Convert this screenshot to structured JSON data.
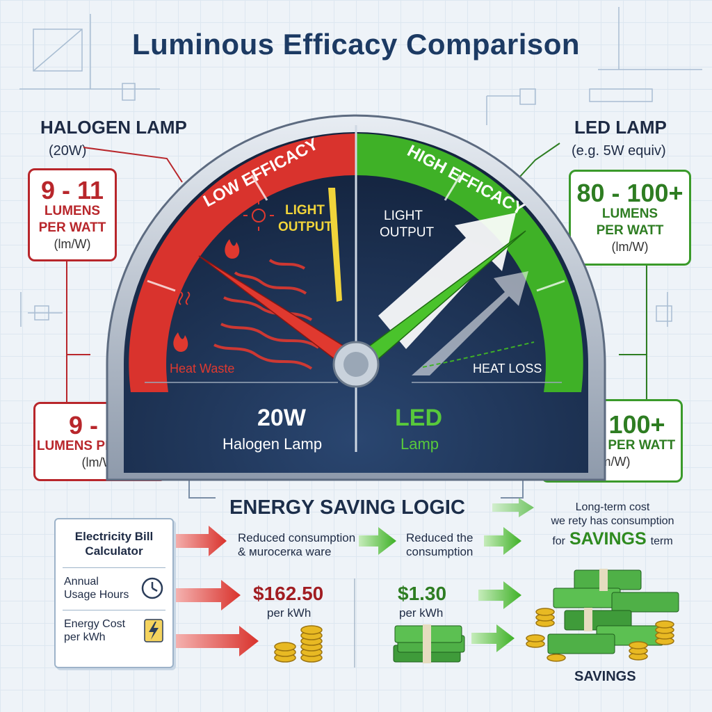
{
  "title": "Luminous Efficacy Comparison",
  "halogen": {
    "heading": "HALOGEN LAMP",
    "sub": "(20W)",
    "box_top": {
      "range": "9 - 11",
      "unit_line1": "LUMENS",
      "unit_line2": "PER WATT",
      "abbr": "(lm/W)"
    },
    "box_bottom": {
      "range": "9 - 11",
      "unit": "LUMENS PER WATT",
      "abbr": "(lm/W)"
    }
  },
  "led": {
    "heading": "LED LAMP",
    "sub": "(e.g. 5W equiv)",
    "box_top": {
      "range": "80 - 100+",
      "unit_line1": "LUMENS",
      "unit_line2": "PER WATT",
      "abbr": "(lm/W)"
    },
    "box_bottom": {
      "range": "80 - 100+",
      "unit": "LUMENS PER WATT",
      "abbr": "(lm/W)"
    }
  },
  "gauge": {
    "low_label": "LOW EFFICACY",
    "high_label": "HIGH EFFICACY",
    "left_light_line1": "LIGHT",
    "left_light_line2": "OUTPUT",
    "right_light_line1": "LIGHT",
    "right_light_line2": "OUTPUT",
    "heat_waste": "Heat Waste",
    "heat_loss": "HEAT LOSS",
    "left_caption_big": "20W",
    "left_caption_small": "Halogen Lamp",
    "right_caption_big": "LED",
    "right_caption_small": "Lamp",
    "colors": {
      "low": "#d9332d",
      "high": "#3fb127",
      "face": "#1b2d4f"
    }
  },
  "energy": {
    "heading": "ENERGY SAVING LOGIC",
    "step1_line1": "Reduced consumption",
    "step1_line2": "& мurocerкa ware",
    "step2_line1": "Reduced the",
    "step2_line2": "consumption",
    "step3_line1": "Long-term cost",
    "step3_line2": "we rety has consumption",
    "step3_for": "for",
    "step3_savings": "SAVINGS",
    "step3_term": "term"
  },
  "calculator": {
    "title_line1": "Electricity Bill",
    "title_line2": "Calculator",
    "row1_line1": "Annual",
    "row1_line2": "Usage Hours",
    "row2_line1": "Energy Cost",
    "row2_line2": "per kWh",
    "icons": [
      "clock-icon",
      "lightning-icon"
    ]
  },
  "costs": {
    "halogen_amount": "$162.50",
    "halogen_unit": "per kWh",
    "led_amount": "$1.30",
    "led_unit": "per kWh",
    "savings_label": "SAVINGS"
  }
}
